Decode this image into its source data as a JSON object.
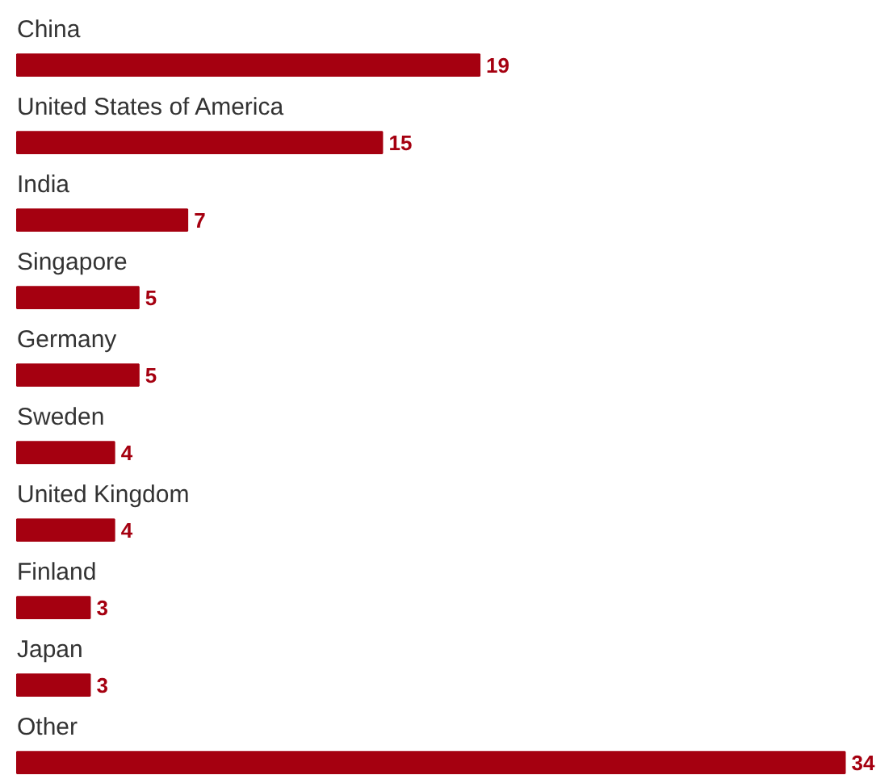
{
  "chart_data": {
    "type": "bar",
    "orientation": "horizontal",
    "data_labels": true,
    "color": "#a50010",
    "categories": [
      "China",
      "United States of America",
      "India",
      "Singapore",
      "Germany",
      "Sweden",
      "United Kingdom",
      "Finland",
      "Japan",
      "Other"
    ],
    "values": [
      19,
      15,
      7,
      5,
      5,
      4,
      4,
      3,
      3,
      34
    ]
  }
}
